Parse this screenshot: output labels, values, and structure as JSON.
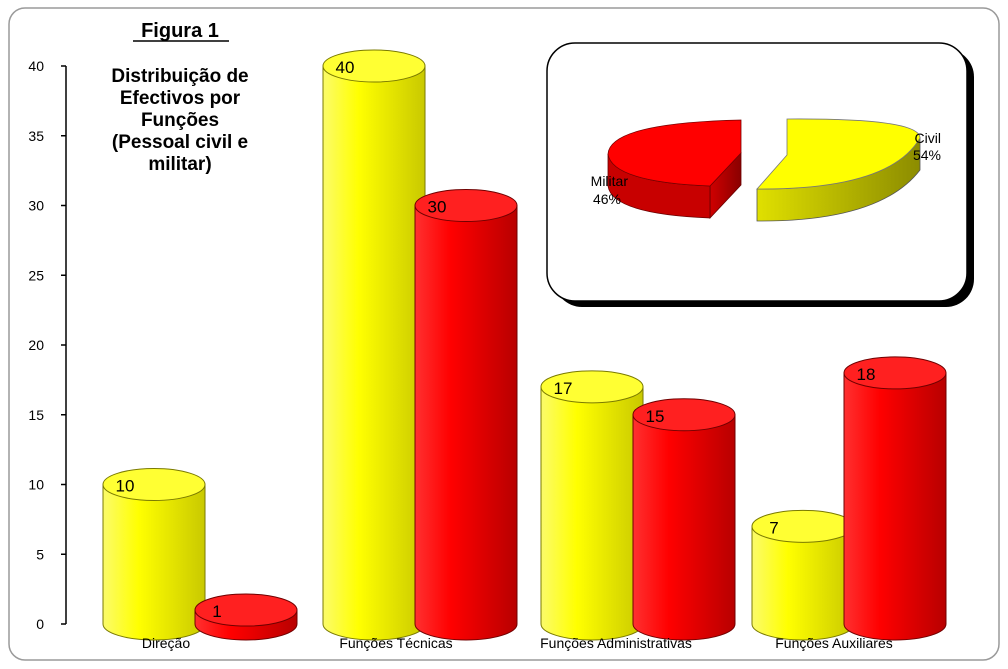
{
  "chart_data": [
    {
      "type": "bar",
      "figure_label": "Figura 1",
      "title_lines": [
        "Distribuição de",
        "Efectivos por",
        "Funções",
        "(Pessoal civil e",
        "militar)"
      ],
      "categories": [
        "Direção",
        "Funções Técnicas",
        "Funções Administrativas",
        "Funções Auxiliares"
      ],
      "series": [
        {
          "color": "#ffff00",
          "values": [
            10,
            40,
            17,
            7
          ]
        },
        {
          "color": "#ff0000",
          "values": [
            1,
            30,
            15,
            18
          ]
        }
      ],
      "yticks": [
        "0",
        "5",
        "10",
        "15",
        "20",
        "25",
        "30",
        "35",
        "40"
      ],
      "ylim": [
        0,
        40
      ],
      "grid": false,
      "legend": "none"
    },
    {
      "type": "pie",
      "slices": [
        {
          "label": "Civil",
          "percent_label": "54%",
          "value": 54,
          "color": "#ffff00"
        },
        {
          "label": "Militar",
          "percent_label": "46%",
          "value": 46,
          "color": "#ff0000"
        }
      ],
      "legend": "none"
    }
  ]
}
